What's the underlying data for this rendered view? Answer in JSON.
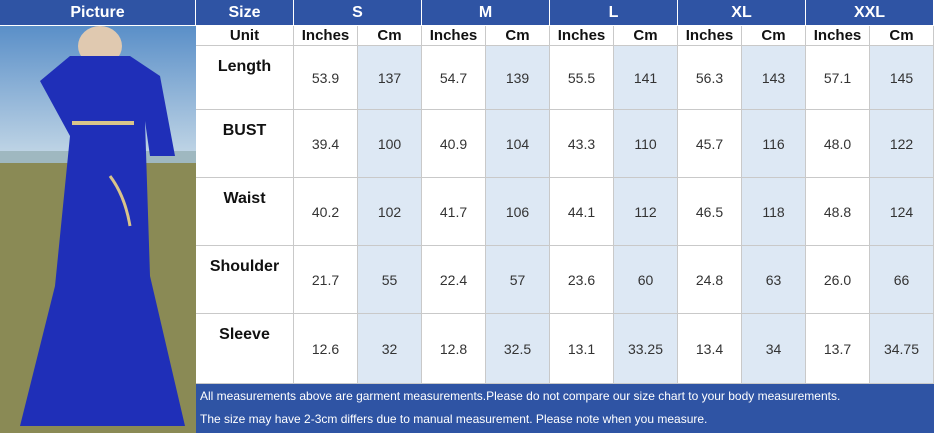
{
  "header": {
    "picture": "Picture",
    "size": "Size",
    "unit": "Unit",
    "sizes": [
      "S",
      "M",
      "L",
      "XL",
      "XXL"
    ],
    "units": [
      "Inches",
      "Cm"
    ]
  },
  "table": {
    "rows": [
      {
        "label": "Length",
        "values": [
          "53.9",
          "137",
          "54.7",
          "139",
          "55.5",
          "141",
          "56.3",
          "143",
          "57.1",
          "145"
        ]
      },
      {
        "label": "BUST",
        "values": [
          "39.4",
          "100",
          "40.9",
          "104",
          "43.3",
          "110",
          "45.7",
          "116",
          "48.0",
          "122"
        ]
      },
      {
        "label": "Waist",
        "values": [
          "40.2",
          "102",
          "41.7",
          "106",
          "44.1",
          "112",
          "46.5",
          "118",
          "48.8",
          "124"
        ]
      },
      {
        "label": "Shoulder",
        "values": [
          "21.7",
          "55",
          "22.4",
          "57",
          "23.6",
          "60",
          "24.8",
          "63",
          "26.0",
          "66"
        ]
      },
      {
        "label": "Sleeve",
        "values": [
          "12.6",
          "32",
          "12.8",
          "32.5",
          "13.1",
          "33.25",
          "13.4",
          "34",
          "13.7",
          "34.75"
        ]
      }
    ]
  },
  "notes": [
    "All measurements above are garment measurements.Please do not compare our size chart to your body measurements.",
    "The size may have 2-3cm differs due to manual measurement. Please note when you measure."
  ]
}
